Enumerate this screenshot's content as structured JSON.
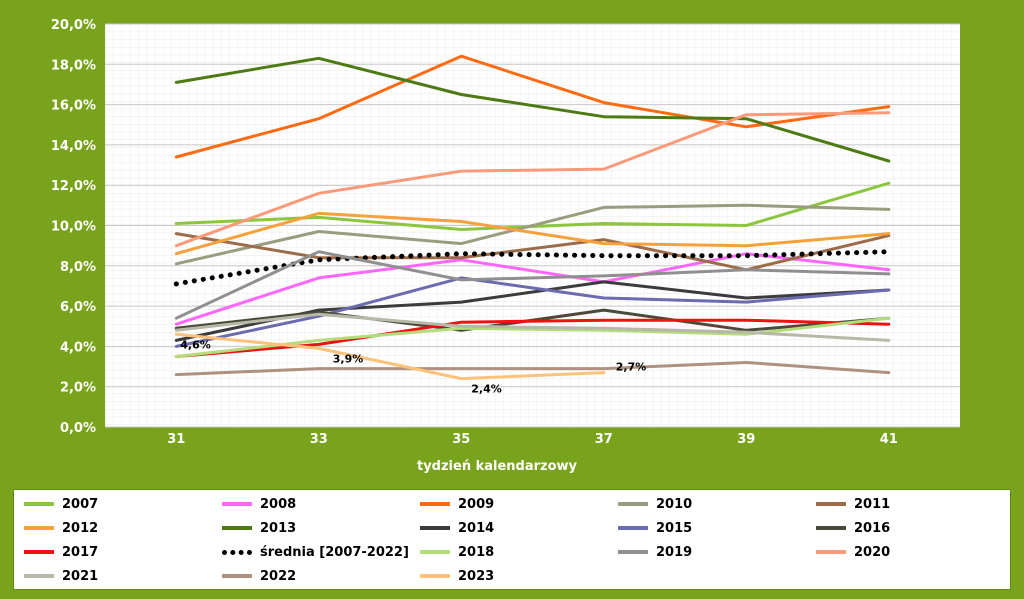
{
  "chart_data": {
    "type": "line",
    "title": "",
    "xlabel": "tydzień kalendarzowy",
    "ylabel": "",
    "x": [
      31,
      33,
      35,
      37,
      39,
      41
    ],
    "y_ticks": [
      "0,0%",
      "2,0%",
      "4,0%",
      "6,0%",
      "8,0%",
      "10,0%",
      "12,0%",
      "14,0%",
      "16,0%",
      "18,0%",
      "20,0%"
    ],
    "ylim": [
      0,
      20
    ],
    "xlim": [
      30,
      42
    ],
    "grid": true,
    "legend_position": "bottom",
    "series": [
      {
        "name": "2007",
        "color": "#8cc63f",
        "values": [
          10.1,
          10.4,
          9.8,
          10.1,
          10.0,
          12.1
        ]
      },
      {
        "name": "2008",
        "color": "#ff66ff",
        "values": [
          5.1,
          7.4,
          8.3,
          7.2,
          8.6,
          7.8
        ]
      },
      {
        "name": "2009",
        "color": "#ff6a13",
        "values": [
          13.4,
          15.3,
          18.4,
          16.1,
          14.9,
          15.9
        ]
      },
      {
        "name": "2010",
        "color": "#9b9b80",
        "values": [
          8.1,
          9.7,
          9.1,
          10.9,
          11.0,
          10.8
        ]
      },
      {
        "name": "2011",
        "color": "#9c6b4a",
        "values": [
          9.6,
          8.4,
          8.4,
          9.3,
          7.8,
          9.5
        ]
      },
      {
        "name": "2012",
        "color": "#f7a03c",
        "values": [
          8.6,
          10.6,
          10.2,
          9.1,
          9.0,
          9.6
        ]
      },
      {
        "name": "2013",
        "color": "#4d7a12",
        "values": [
          17.1,
          18.3,
          16.5,
          15.4,
          15.3,
          13.2
        ]
      },
      {
        "name": "2014",
        "color": "#3b3b3b",
        "values": [
          4.3,
          5.8,
          6.2,
          7.2,
          6.4,
          6.8
        ]
      },
      {
        "name": "2015",
        "color": "#6b6bb0",
        "values": [
          4.0,
          5.5,
          7.4,
          6.4,
          6.2,
          6.8
        ]
      },
      {
        "name": "2016",
        "color": "#4a4a3a",
        "values": [
          4.9,
          5.7,
          4.8,
          5.8,
          4.8,
          5.4
        ]
      },
      {
        "name": "2017",
        "color": "#ee1111",
        "values": [
          3.5,
          4.1,
          5.2,
          5.3,
          5.3,
          5.1
        ]
      },
      {
        "name": "średnia [2007-2022]",
        "color": "#000000",
        "dotted": true,
        "values": [
          7.1,
          8.3,
          8.6,
          8.5,
          8.5,
          8.7
        ]
      },
      {
        "name": "2018",
        "color": "#b3dc7a",
        "values": [
          3.5,
          4.3,
          4.9,
          4.8,
          4.6,
          5.4
        ]
      },
      {
        "name": "2019",
        "color": "#8f8f8f",
        "values": [
          5.4,
          8.7,
          7.3,
          7.5,
          7.8,
          7.6
        ]
      },
      {
        "name": "2020",
        "color": "#fa9a7a",
        "values": [
          9.0,
          11.6,
          12.7,
          12.8,
          15.5,
          15.6
        ]
      },
      {
        "name": "2021",
        "color": "#b8b8a8",
        "values": [
          4.8,
          5.6,
          5.0,
          4.9,
          4.7,
          4.3
        ]
      },
      {
        "name": "2022",
        "color": "#b09080",
        "values": [
          2.6,
          2.9,
          2.9,
          2.9,
          3.2,
          2.7
        ]
      },
      {
        "name": "2023",
        "color": "#fcc27a",
        "values": [
          4.6,
          3.9,
          2.4,
          2.7,
          null,
          null
        ]
      }
    ],
    "annotations": [
      {
        "series": "2023",
        "x": 31,
        "text": "4,6%"
      },
      {
        "series": "2023",
        "x": 33,
        "text": "3,9%"
      },
      {
        "series": "2023",
        "x": 35,
        "text": "2,4%"
      },
      {
        "series": "2023",
        "x": 37,
        "text": "2,7%"
      }
    ]
  }
}
